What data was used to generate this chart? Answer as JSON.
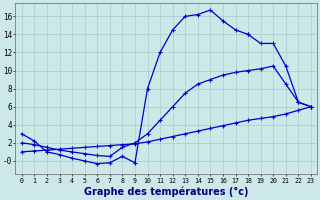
{
  "xlabel": "Graphe des températures (°c)",
  "background_color": "#cce8e8",
  "line_color": "#0000cc",
  "grid_color": "#aacccc",
  "line1_x": [
    0,
    1,
    2,
    3,
    4,
    5,
    6,
    7,
    8,
    9,
    10,
    11,
    12,
    13,
    14,
    15,
    16,
    17,
    18,
    19,
    20,
    21,
    22,
    23
  ],
  "line1_y": [
    1.0,
    1.1,
    1.2,
    1.3,
    1.4,
    1.5,
    1.6,
    1.7,
    1.8,
    1.9,
    2.1,
    2.4,
    2.7,
    3.0,
    3.3,
    3.6,
    3.9,
    4.2,
    4.5,
    4.7,
    4.9,
    5.2,
    5.6,
    6.0
  ],
  "line2_x": [
    0,
    1,
    2,
    3,
    4,
    5,
    6,
    7,
    8,
    9,
    10,
    11,
    12,
    13,
    14,
    15,
    16,
    17,
    18,
    19,
    20,
    21,
    22,
    23
  ],
  "line2_y": [
    2.0,
    1.8,
    1.5,
    1.2,
    1.0,
    0.8,
    0.6,
    0.5,
    1.5,
    2.0,
    3.0,
    4.5,
    6.0,
    7.5,
    8.5,
    9.0,
    9.5,
    9.8,
    10.0,
    10.2,
    10.5,
    8.5,
    6.5,
    6.0
  ],
  "line3_x": [
    0,
    1,
    2,
    3,
    4,
    5,
    6,
    7,
    8,
    9,
    10,
    11,
    12,
    13,
    14,
    15,
    16,
    17,
    18
  ],
  "line3_y": [
    3.0,
    2.2,
    1.0,
    0.7,
    0.3,
    0.0,
    -0.3,
    -0.2,
    0.5,
    -0.2,
    8.0,
    12.0,
    14.5,
    16.0,
    16.2,
    16.7,
    15.5,
    14.5,
    14.0
  ],
  "line4_x": [
    18,
    19,
    20,
    21,
    22,
    23
  ],
  "line4_y": [
    14.0,
    13.0,
    13.0,
    10.5,
    6.5,
    6.0
  ],
  "yticks": [
    0,
    2,
    4,
    6,
    8,
    10,
    12,
    14,
    16
  ],
  "ytick_labels": [
    "-0",
    "2",
    "4",
    "6",
    "8",
    "10",
    "12",
    "14",
    "16"
  ],
  "ylim": [
    -1.5,
    17.5
  ],
  "xlim": [
    -0.5,
    23.5
  ]
}
